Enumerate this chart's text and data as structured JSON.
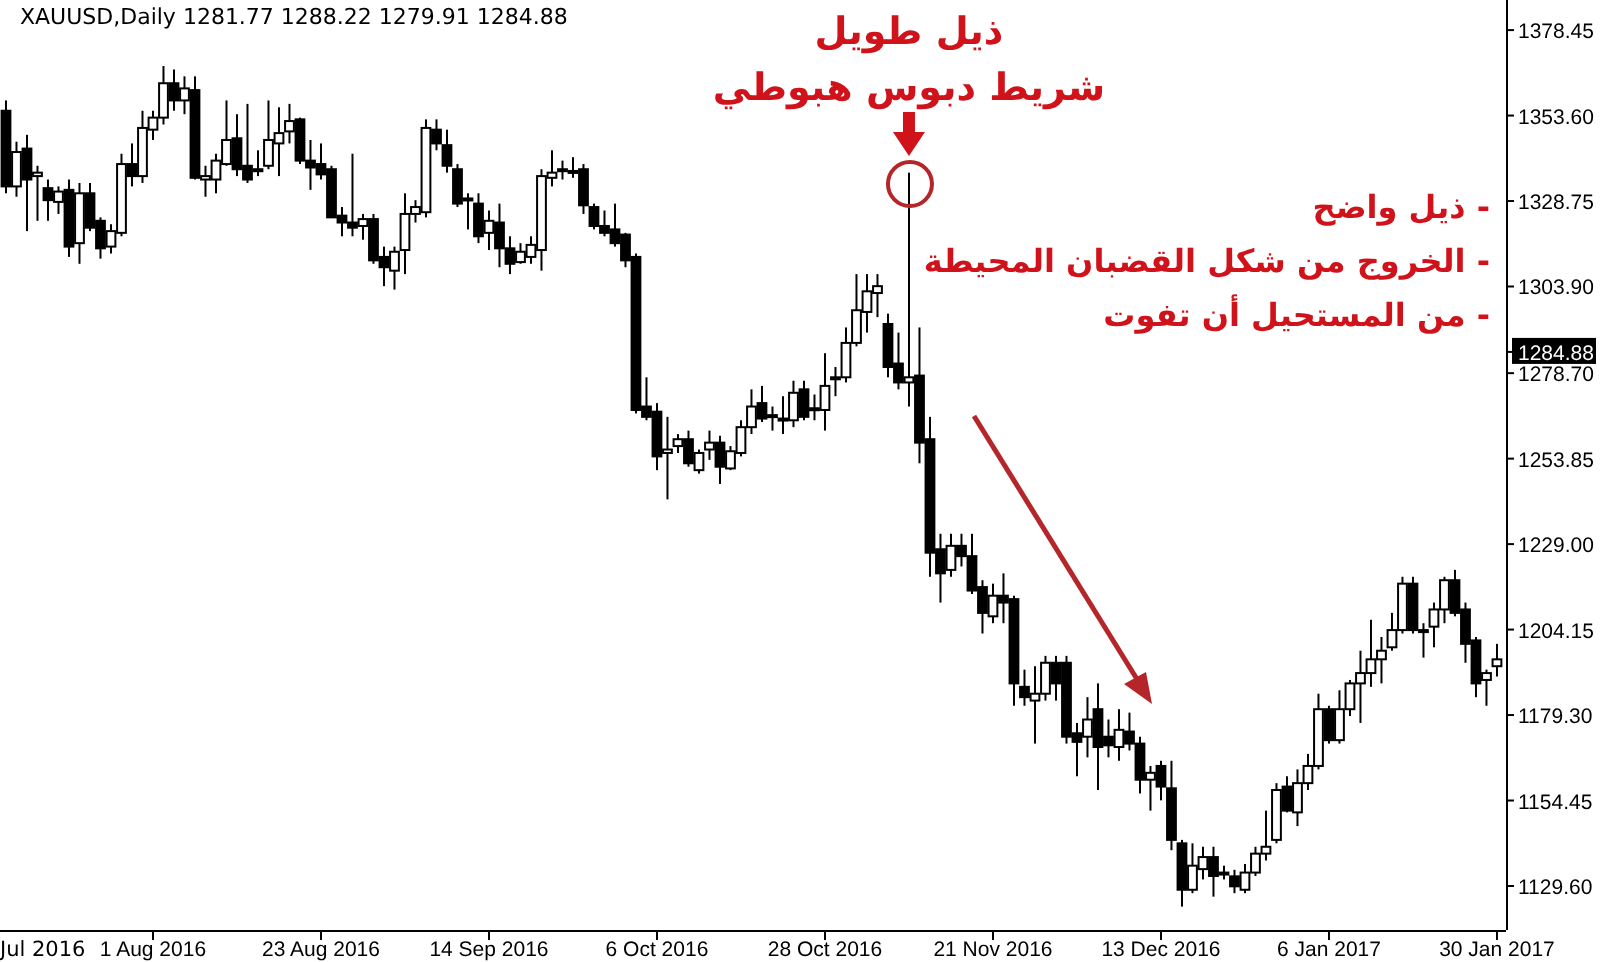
{
  "chart_data": {
    "type": "candlestick",
    "title": "XAUUSD,Daily  1281.77 1288.22 1279.91 1284.88",
    "categories": [
      null,
      null,
      null,
      null,
      null,
      null,
      null,
      null,
      null,
      null,
      null,
      null,
      null,
      null,
      "1 Aug 2016",
      null,
      null,
      null,
      null,
      null,
      null,
      null,
      null,
      null,
      null,
      null,
      null,
      null,
      null,
      null,
      "23 Aug 2016",
      null,
      null,
      null,
      null,
      null,
      null,
      null,
      null,
      null,
      null,
      null,
      null,
      null,
      null,
      null,
      "14 Sep 2016",
      null,
      null,
      null,
      null,
      null,
      null,
      null,
      null,
      null,
      null,
      null,
      null,
      null,
      null,
      null,
      "6 Oct 2016",
      null,
      null,
      null,
      null,
      null,
      null,
      null,
      null,
      null,
      null,
      null,
      null,
      null,
      null,
      null,
      "28 Oct 2016",
      null,
      null,
      null,
      null,
      null,
      null,
      null,
      null,
      null,
      null,
      null,
      null,
      null,
      null,
      null,
      "21 Nov 2016",
      null,
      null,
      null,
      null,
      null,
      null,
      null,
      null,
      null,
      null,
      null,
      null,
      null,
      null,
      null,
      "13 Dec 2016",
      null,
      null,
      null,
      null,
      null,
      null,
      null,
      null,
      null,
      null,
      null,
      null,
      null,
      null,
      null,
      "6 Jan 2017",
      null,
      null,
      null,
      null,
      null,
      null,
      null,
      null,
      null,
      null,
      null,
      null,
      null,
      null,
      null,
      "30 Jan 2017"
    ],
    "ohlc": [
      [
        1355,
        1358,
        1331,
        1333
      ],
      [
        1333,
        1346,
        1330,
        1343
      ],
      [
        1344,
        1348,
        1320,
        1335
      ],
      [
        1336,
        1339,
        1323,
        1337
      ],
      [
        1332.5,
        1335,
        1323,
        1329
      ],
      [
        1328.5,
        1333,
        1325,
        1331.5
      ],
      [
        1332,
        1335,
        1312.5,
        1315.5
      ],
      [
        1316.5,
        1334,
        1310.5,
        1331
      ],
      [
        1331,
        1334,
        1320,
        1321
      ],
      [
        1323,
        1324,
        1312,
        1315
      ],
      [
        1315.5,
        1322,
        1313.5,
        1320
      ],
      [
        1319.5,
        1342.5,
        1318.5,
        1339.5
      ],
      [
        1339.5,
        1345.5,
        1333,
        1336
      ],
      [
        1336,
        1355,
        1334,
        1350
      ],
      [
        1349.5,
        1355,
        1346.5,
        1353
      ],
      [
        1353,
        1368,
        1351,
        1363
      ],
      [
        1363,
        1367,
        1355,
        1358
      ],
      [
        1358,
        1365,
        1354,
        1361.5
      ],
      [
        1361,
        1365,
        1335,
        1335.5
      ],
      [
        1335,
        1339,
        1330,
        1336
      ],
      [
        1335,
        1342.5,
        1331,
        1340.5
      ],
      [
        1339.5,
        1358,
        1339,
        1346.5
      ],
      [
        1347,
        1354,
        1336,
        1338
      ],
      [
        1339,
        1357,
        1334,
        1335
      ],
      [
        1337.5,
        1343.5,
        1336,
        1338
      ],
      [
        1339,
        1358,
        1338,
        1346.5
      ],
      [
        1345.5,
        1356,
        1336,
        1348.5
      ],
      [
        1349,
        1357,
        1345.5,
        1352
      ],
      [
        1352.5,
        1353,
        1339.5,
        1340.5
      ],
      [
        1340.5,
        1346.5,
        1332,
        1338.5
      ],
      [
        1339.5,
        1345.5,
        1335,
        1336.5
      ],
      [
        1338,
        1339,
        1324,
        1324
      ],
      [
        1324.5,
        1327,
        1318.5,
        1322.5
      ],
      [
        1322.5,
        1342.5,
        1318.5,
        1321
      ],
      [
        1321.5,
        1325,
        1317.5,
        1323.5
      ],
      [
        1323.5,
        1325,
        1310.5,
        1311.5
      ],
      [
        1312.5,
        1315.5,
        1304,
        1309.5
      ],
      [
        1308.5,
        1315.5,
        1303,
        1314
      ],
      [
        1314.5,
        1331,
        1307.5,
        1325
      ],
      [
        1325,
        1329,
        1322.5,
        1327
      ],
      [
        1325.5,
        1352.5,
        1324,
        1350
      ],
      [
        1349.5,
        1352.5,
        1343.5,
        1345.5
      ],
      [
        1345,
        1349.5,
        1337,
        1339
      ],
      [
        1338,
        1339.5,
        1327,
        1328
      ],
      [
        1329,
        1331,
        1320.5,
        1329.5
      ],
      [
        1328,
        1331,
        1316.5,
        1318.5
      ],
      [
        1319.5,
        1326,
        1314.5,
        1323
      ],
      [
        1322.5,
        1328,
        1309.5,
        1315
      ],
      [
        1315,
        1318.5,
        1307.5,
        1310.5
      ],
      [
        1311,
        1316.5,
        1310.5,
        1314
      ],
      [
        1312.5,
        1318.5,
        1310.5,
        1316
      ],
      [
        1314.5,
        1338,
        1308.5,
        1336
      ],
      [
        1335.5,
        1343.5,
        1333,
        1337
      ],
      [
        1337.5,
        1340.5,
        1335,
        1338
      ],
      [
        1337.5,
        1341.5,
        1335.5,
        1337
      ],
      [
        1338,
        1339.5,
        1325,
        1327.5
      ],
      [
        1327,
        1328,
        1320.5,
        1321.5
      ],
      [
        1321.5,
        1326,
        1318.5,
        1319.5
      ],
      [
        1320.5,
        1328,
        1315.5,
        1316.5
      ],
      [
        1319,
        1319.5,
        1309.5,
        1311.5
      ],
      [
        1312.5,
        1313.5,
        1267,
        1268
      ],
      [
        1269,
        1277.5,
        1265,
        1266
      ],
      [
        1267.5,
        1270,
        1250.5,
        1254.5
      ],
      [
        1255.5,
        1266,
        1242,
        1256.5
      ],
      [
        1257.5,
        1261,
        1255.5,
        1259.5
      ],
      [
        1259.5,
        1262,
        1251.5,
        1252.5
      ],
      [
        1250.5,
        1256.5,
        1249.5,
        1255.5
      ],
      [
        1256.5,
        1262,
        1253.5,
        1258.5
      ],
      [
        1258.5,
        1260.5,
        1246.5,
        1251.5
      ],
      [
        1251,
        1257.5,
        1250.5,
        1256
      ],
      [
        1255.5,
        1265,
        1254.5,
        1263
      ],
      [
        1263,
        1274,
        1261,
        1269
      ],
      [
        1270,
        1275,
        1264.5,
        1265.5
      ],
      [
        1266,
        1269,
        1262,
        1266.5
      ],
      [
        1265.5,
        1272,
        1261,
        1265
      ],
      [
        1265,
        1276.5,
        1263,
        1273
      ],
      [
        1274,
        1276.5,
        1265,
        1266
      ],
      [
        1268,
        1272.5,
        1265,
        1268.5
      ],
      [
        1268,
        1284.5,
        1262,
        1275
      ],
      [
        1277,
        1280.5,
        1272,
        1277.5
      ],
      [
        1277.5,
        1292,
        1276,
        1287.5
      ],
      [
        1287.5,
        1307.5,
        1286.5,
        1297
      ],
      [
        1296.5,
        1307.5,
        1290.5,
        1302.5
      ],
      [
        1302,
        1307.5,
        1295,
        1304
      ],
      [
        1293,
        1296,
        1277.5,
        1280.5
      ],
      [
        1281.5,
        1290.5,
        1274,
        1276
      ],
      [
        1276,
        1337,
        1269,
        1277.5
      ],
      [
        1278,
        1292,
        1252.5,
        1258.5
      ],
      [
        1259.5,
        1266,
        1219.5,
        1226.5
      ],
      [
        1227.5,
        1232,
        1212,
        1220.5
      ],
      [
        1221.5,
        1232,
        1219.5,
        1228.5
      ],
      [
        1228.5,
        1232,
        1222.5,
        1225.5
      ],
      [
        1225.5,
        1232,
        1214.5,
        1215.5
      ],
      [
        1216.5,
        1218.5,
        1203,
        1209
      ],
      [
        1208,
        1217.5,
        1206,
        1214
      ],
      [
        1214,
        1220.5,
        1206,
        1212
      ],
      [
        1213,
        1214,
        1182,
        1188.5
      ],
      [
        1187.5,
        1192.5,
        1182,
        1184.5
      ],
      [
        1183.5,
        1193.5,
        1171,
        1185.5
      ],
      [
        1185.5,
        1196.5,
        1183.5,
        1194.5
      ],
      [
        1194.5,
        1196.5,
        1183.5,
        1188.5
      ],
      [
        1194.5,
        1196.5,
        1171,
        1173
      ],
      [
        1174,
        1177,
        1161.5,
        1171.5
      ],
      [
        1173,
        1184.5,
        1167,
        1178
      ],
      [
        1181,
        1188.5,
        1157.5,
        1170
      ],
      [
        1173,
        1178,
        1167,
        1170.5
      ],
      [
        1170,
        1181,
        1166,
        1175
      ],
      [
        1174.5,
        1180,
        1169,
        1171
      ],
      [
        1171,
        1173,
        1156.5,
        1160.5
      ],
      [
        1160.5,
        1164.5,
        1151.5,
        1162.5
      ],
      [
        1164.5,
        1166,
        1154.5,
        1158.5
      ],
      [
        1158,
        1166,
        1140,
        1143
      ],
      [
        1142,
        1143,
        1123.6,
        1128.5
      ],
      [
        1128.5,
        1142,
        1127.5,
        1135.5
      ],
      [
        1134.5,
        1141,
        1131.5,
        1138
      ],
      [
        1138,
        1141,
        1126.5,
        1132.5
      ],
      [
        1133.5,
        1135.5,
        1131.5,
        1133
      ],
      [
        1132.4,
        1134.3,
        1127.5,
        1129.5
      ],
      [
        1128.5,
        1136,
        1127.5,
        1133.5
      ],
      [
        1133.5,
        1141,
        1132.5,
        1139
      ],
      [
        1139,
        1151.5,
        1137,
        1141
      ],
      [
        1143,
        1159.5,
        1142,
        1157.5
      ],
      [
        1158.5,
        1161.5,
        1151,
        1151.5
      ],
      [
        1151,
        1163.5,
        1147,
        1159.5
      ],
      [
        1159.5,
        1168,
        1157.5,
        1164.5
      ],
      [
        1164.5,
        1185.5,
        1163.5,
        1181
      ],
      [
        1181,
        1182,
        1171,
        1172
      ],
      [
        1172,
        1186.5,
        1171,
        1181
      ],
      [
        1181,
        1189.5,
        1179,
        1188.5
      ],
      [
        1188.5,
        1198,
        1177,
        1191.5
      ],
      [
        1191.5,
        1207,
        1187.5,
        1195.5
      ],
      [
        1195.5,
        1202,
        1188.5,
        1198
      ],
      [
        1199,
        1209,
        1198,
        1204
      ],
      [
        1204,
        1219.5,
        1203,
        1217.5
      ],
      [
        1217.5,
        1219.5,
        1203,
        1204
      ],
      [
        1204,
        1206,
        1196,
        1203.5
      ],
      [
        1205,
        1212,
        1199,
        1210
      ],
      [
        1210,
        1219.5,
        1206,
        1218.5
      ],
      [
        1218.5,
        1221.5,
        1208,
        1209
      ],
      [
        1210,
        1212,
        1194.5,
        1200
      ],
      [
        1201,
        1202,
        1184.5,
        1188.5
      ],
      [
        1189.5,
        1192.5,
        1182,
        1191.5
      ],
      [
        1193.5,
        1200,
        1190.5,
        1195.5
      ]
    ],
    "ylim": [
      1116.8,
      1387.2
    ],
    "yticks": [
      {
        "value": 1378.45,
        "label": "1378.45"
      },
      {
        "value": 1353.6,
        "label": "1353.60"
      },
      {
        "value": 1328.75,
        "label": "1328.75"
      },
      {
        "value": 1303.9,
        "label": "1303.90"
      },
      {
        "value": 1278.7,
        "label": "1278.70"
      },
      {
        "value": 1253.85,
        "label": "1253.85"
      },
      {
        "value": 1229,
        "label": "1229.00"
      },
      {
        "value": 1204.15,
        "label": "1204.15"
      },
      {
        "value": 1179.3,
        "label": "1179.30"
      },
      {
        "value": 1154.45,
        "label": "1154.45"
      },
      {
        "value": 1129.6,
        "label": "1129.60"
      }
    ],
    "annotations": [
      "ذيل طويل",
      "شريط دبوس هبوطي",
      "- ذيل واضح",
      "- الخروج من شكل القضبان المحيطة",
      "- من المستحيل أن تفوت",
      "Jul 2016",
      {
        "text": "1284.88",
        "y": 1284.88
      }
    ],
    "grid": false
  }
}
